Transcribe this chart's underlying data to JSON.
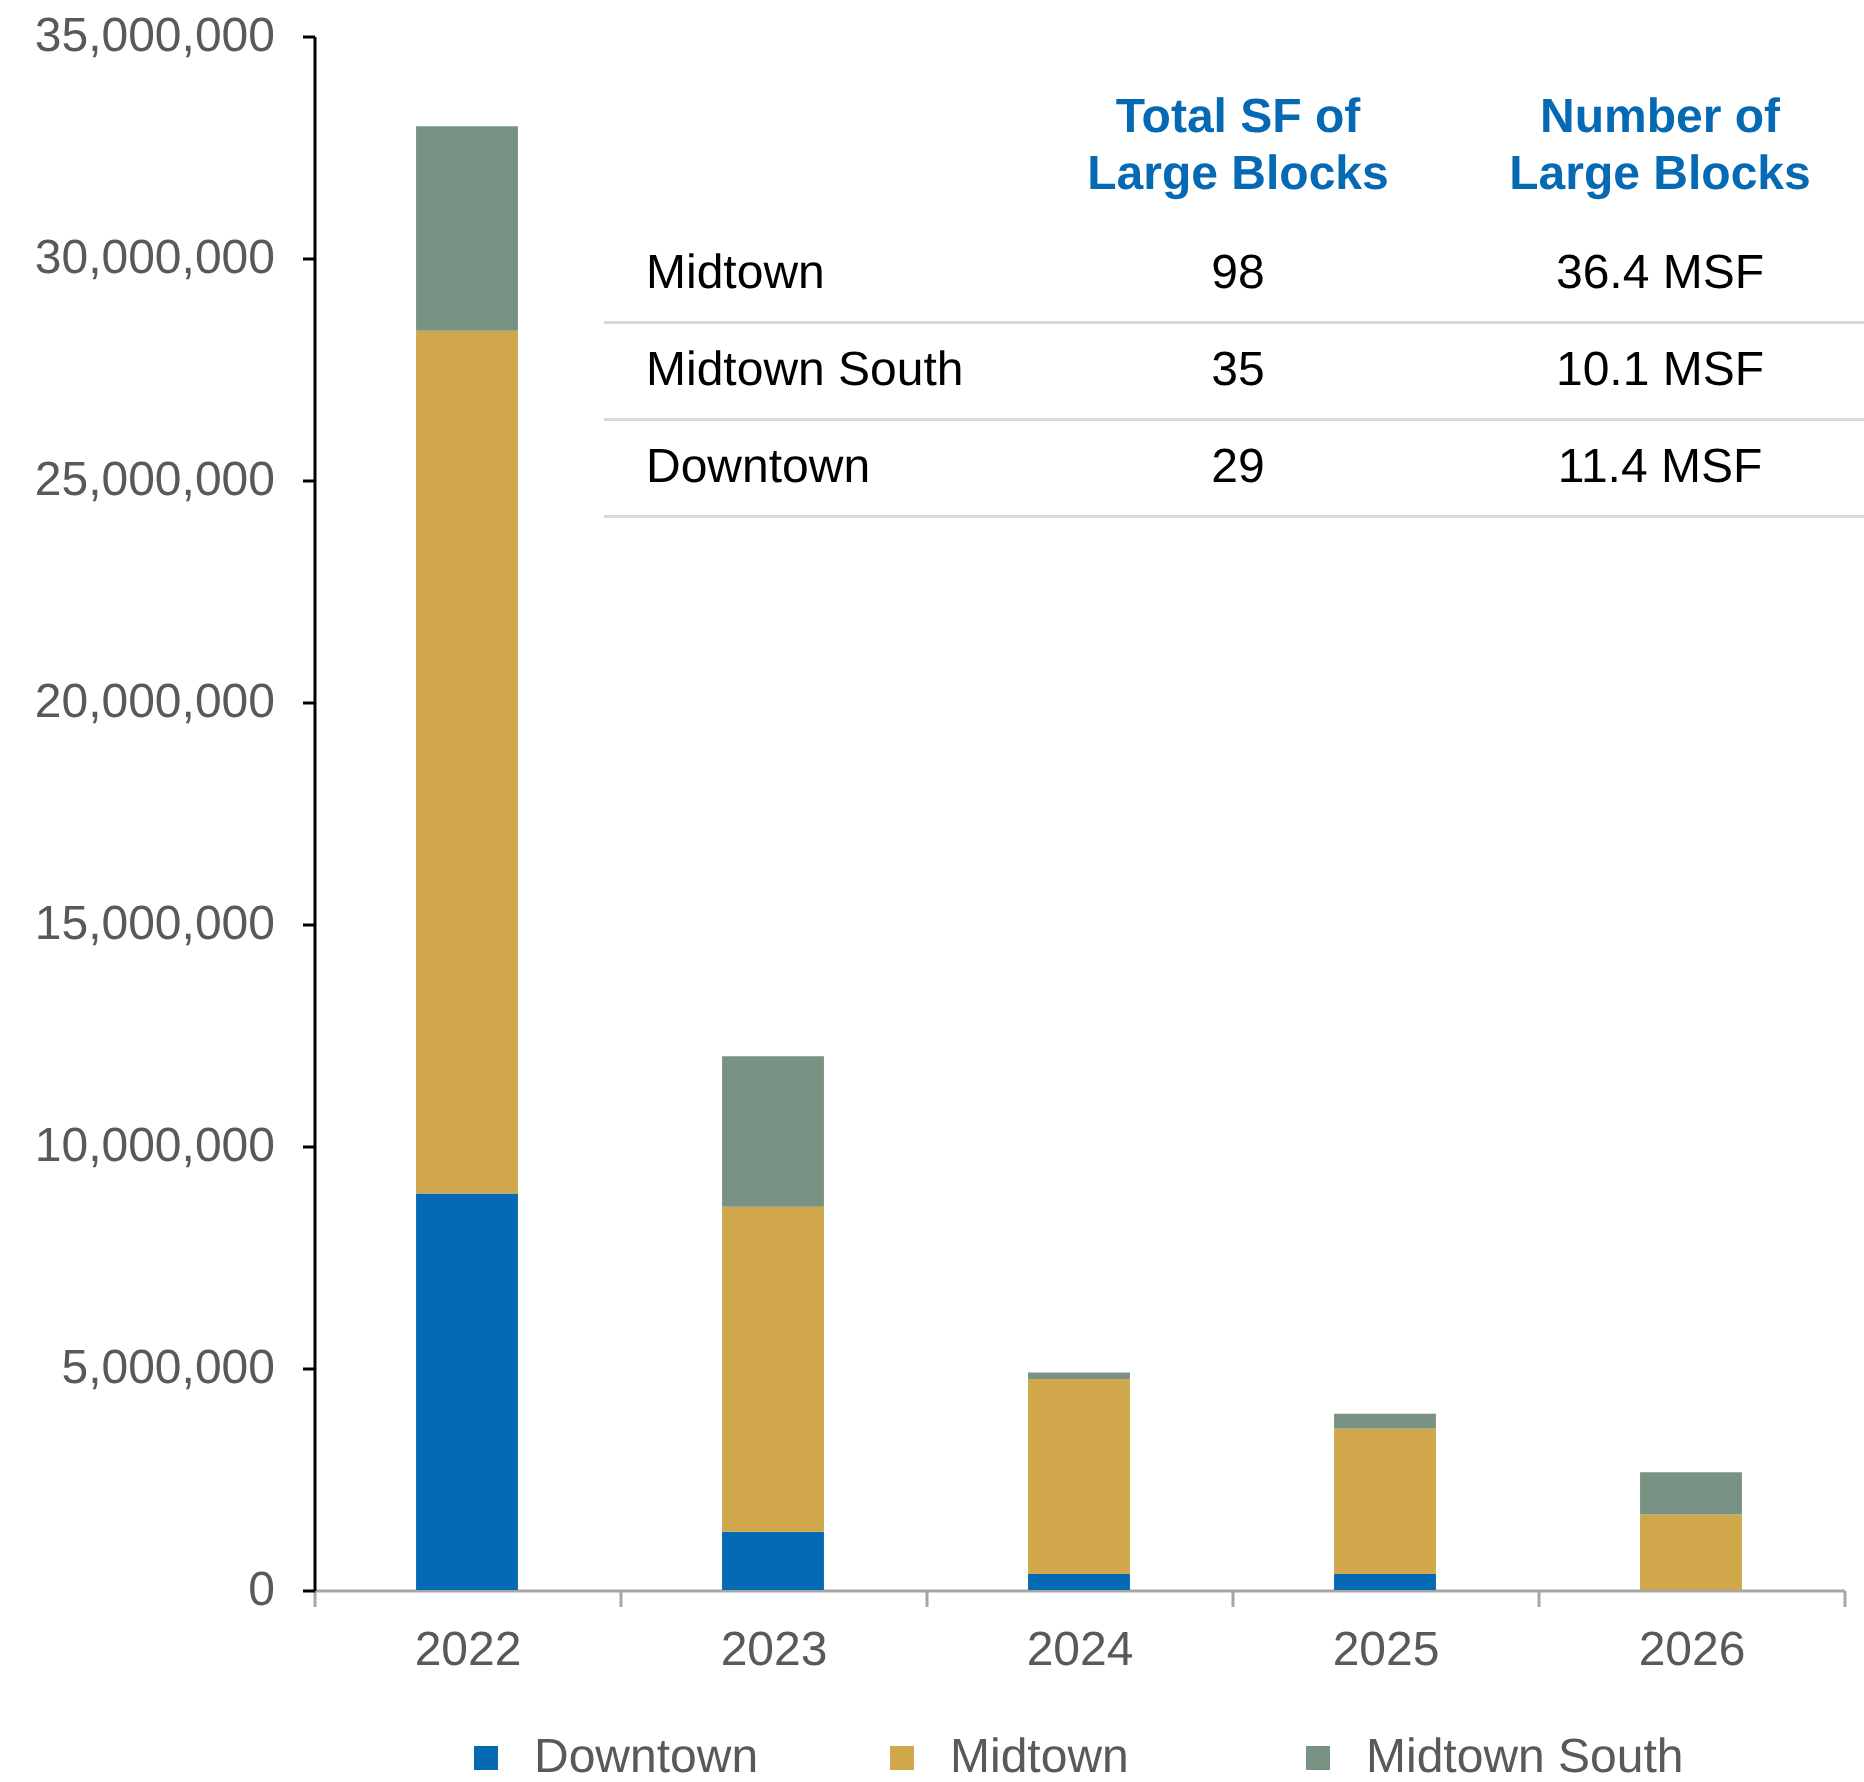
{
  "chart_data": {
    "type": "bar",
    "stacked": true,
    "categories": [
      "2022",
      "2023",
      "2024",
      "2025",
      "2026"
    ],
    "series": [
      {
        "name": "Downtown",
        "color": "#0569b3",
        "values": [
          8930000,
          1310000,
          360000,
          360000,
          null
        ]
      },
      {
        "name": "Midtown",
        "color": "#d1a74c",
        "values": [
          19430000,
          7320000,
          4390000,
          3280000,
          1700000
        ]
      },
      {
        "name": "Midtown South",
        "color": "#789384",
        "values": [
          4610000,
          3390000,
          150000,
          330000,
          950000
        ]
      }
    ],
    "ylim": [
      0,
      35000000
    ],
    "yticks": [
      0,
      {
        "value": 5000000,
        "label": "5,000,000"
      },
      {
        "value": 10000000,
        "label": "10,000,000"
      },
      {
        "value": 15000000,
        "label": "15,000,000"
      },
      {
        "value": 20000000,
        "label": "20,000,000"
      },
      {
        "value": 25000000,
        "label": "25,000,000"
      },
      {
        "value": 30000000,
        "label": "30,000,000"
      },
      {
        "value": 35000000,
        "label": "35,000,000"
      }
    ],
    "legend": "bottom",
    "annotations": [
      "Total SF of Large Blocks",
      "Number of Large Blocks",
      "Midtown",
      "98",
      "36.4 MSF",
      "Midtown South",
      "35",
      "10.1 MSF",
      "Downtown",
      "29",
      "11.4 MSF"
    ]
  }
}
